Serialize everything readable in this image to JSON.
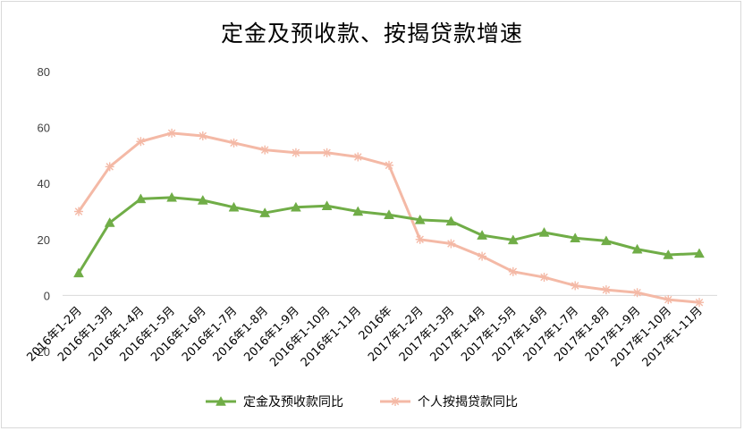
{
  "chart_data": {
    "type": "line",
    "title": "定金及预收款、按揭贷款增速",
    "xlabel": "",
    "ylabel": "",
    "ylim": [
      -20,
      80
    ],
    "yticks": [
      80,
      60,
      40,
      20,
      0,
      -20
    ],
    "grid": false,
    "legend_position": "bottom",
    "categories": [
      "2016年1-2月",
      "2016年1-3月",
      "2016年1-4月",
      "2016年1-5月",
      "2016年1-6月",
      "2016年1-7月",
      "2016年1-8月",
      "2016年1-9月",
      "2016年1-10月",
      "2016年1-11月",
      "2016年",
      "2017年1-2月",
      "2017年1-3月",
      "2017年1-4月",
      "2017年1-5月",
      "2017年1-6月",
      "2017年1-7月",
      "2017年1-8月",
      "2017年1-9月",
      "2017年1-10月",
      "2017年1-11月"
    ],
    "series": [
      {
        "name": "定金及预收款同比",
        "color": "#70ad47",
        "marker": "triangle",
        "values": [
          8,
          26,
          34.5,
          35,
          34,
          31.5,
          29.5,
          31.5,
          32,
          30,
          28.8,
          27,
          26.5,
          21.5,
          19.8,
          22.5,
          20.5,
          19.5,
          16.5,
          14.5,
          15
        ]
      },
      {
        "name": "个人按揭贷款同比",
        "color": "#f4b9a6",
        "marker": "star",
        "values": [
          30,
          46,
          55,
          58,
          57,
          54.5,
          52,
          51,
          51,
          49.5,
          46.5,
          20,
          18.5,
          14,
          8.5,
          6.5,
          3.5,
          2,
          1,
          -1.5,
          -2.5
        ]
      }
    ]
  }
}
